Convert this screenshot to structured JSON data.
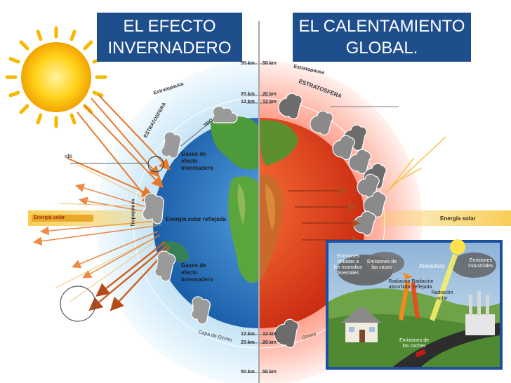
{
  "titles": {
    "left": "EL EFECTO\nINVERNADERO",
    "right": "EL  CALENTAMIENTO\nGLOBAL."
  },
  "left_labels": {
    "gases_top": "Gases de\nefecto\ninvernadero",
    "reflected": "Energía solar reflejada",
    "gases_bottom": "Gases de\nefecto\ninvernadero",
    "estratopausa": "Estratopausa",
    "estratosfera": "ESTRATOSFERA",
    "troposfera": "TRO",
    "tropopausa": "Tropopausa",
    "capa_ozono": "Capa de Ozono",
    "energia_solar": "Energía solar",
    "partial": "ıde"
  },
  "right_labels": {
    "estratopausa": "Estratopausa",
    "estratosfera": "ESTRATOSFERA",
    "energia_solar": "Energía solar",
    "ozono": "Ozono"
  },
  "altitude_ticks_left": [
    "50 km",
    "20 km",
    "12 km",
    "12 km",
    "20 km",
    "50 km"
  ],
  "altitude_ticks_right": [
    "50 km",
    "20 km",
    "12 km",
    "12 km",
    "20 km",
    "50 km"
  ],
  "inset": {
    "emisiones_deforestacion": "Emisiones\ndebidas a\nlos incendios\nforestales",
    "emisiones_casas": "Emisiones de\nlas casas",
    "atmosfera": "Atmósfera",
    "emisiones_industriales": "Emisiones\nindustriales",
    "radiacion_absorbida": "Radiación\nabsorbida",
    "radiacion_reflejada": "Radiación\nreflejada",
    "radiacion_solar": "Radiación\nsolar",
    "emisiones_coches": "Emisiones de\nlos coches"
  },
  "colors": {
    "title_bg": "#1f4e8c",
    "atmosphere": "#cfe6f5",
    "ocean": "#2f7fc9",
    "hot_planet": "#e0401c",
    "sun": "#ffd21a",
    "arrow_orange": "#e8782a"
  }
}
